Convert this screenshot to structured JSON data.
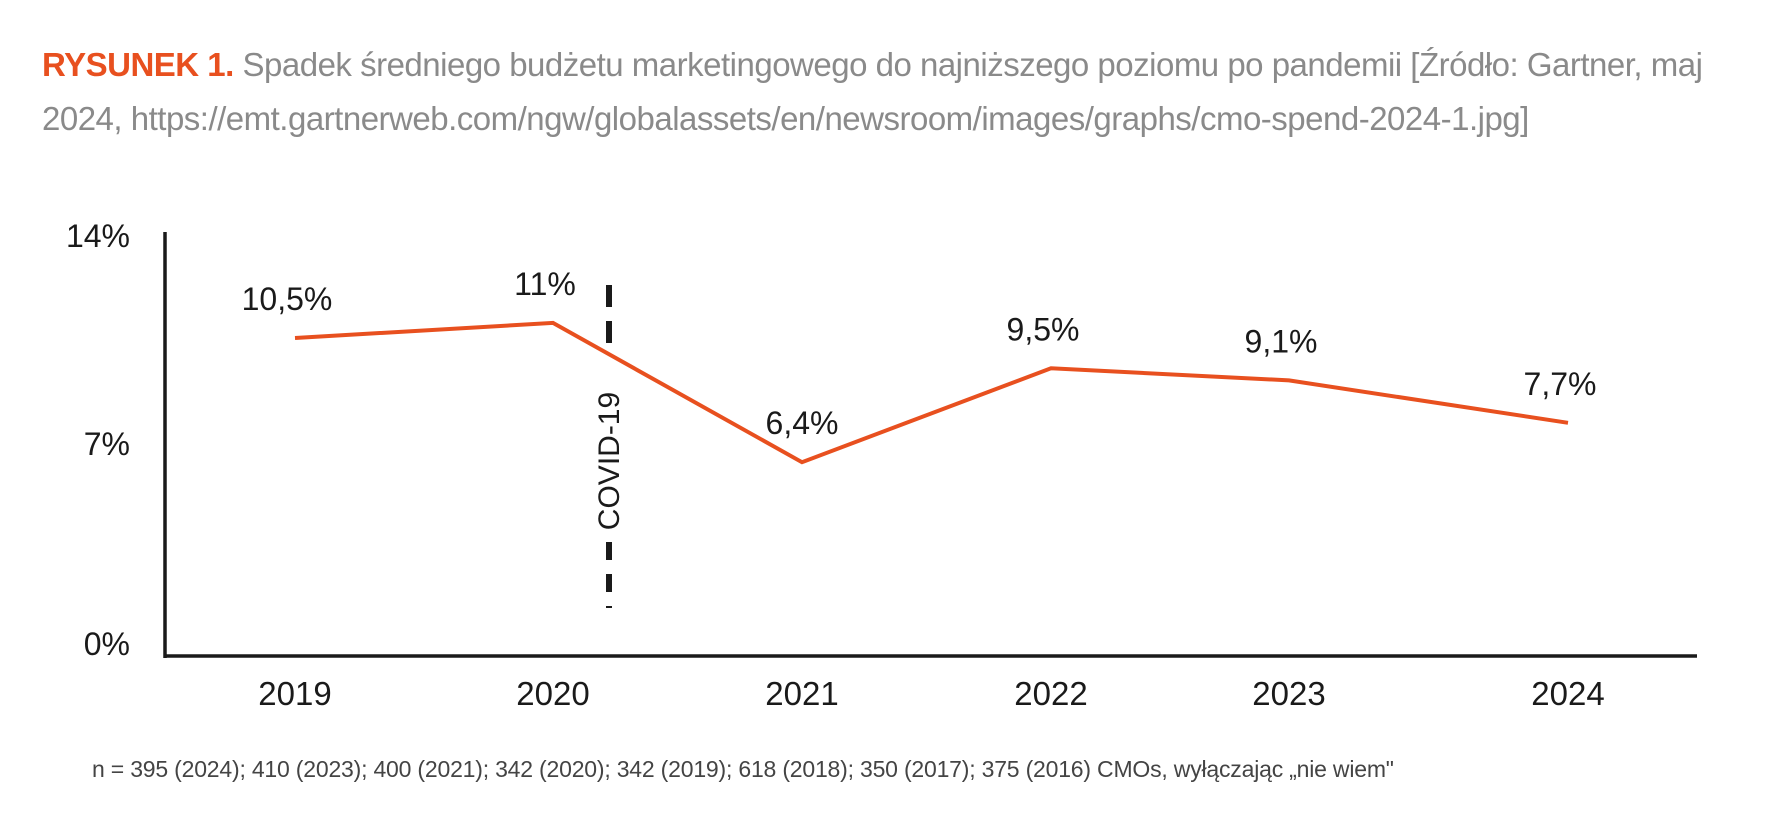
{
  "caption": {
    "label": "RYSUNEK 1.",
    "text": "Spadek średniego budżetu marketingowego do najniższego poziomu po pandemii [Źródło: Gartner, maj 2024, https://emt.gartnerweb.com/ngw/globalassets/en/newsroom/images/graphs/cmo-spend-2024-1.jpg]"
  },
  "footnote": "n = 395 (2024); 410 (2023); 400 (2021); 342 (2020); 342 (2019); 618 (2018); 350 (2017); 375 (2016) CMOs, wyłączając „nie wiem\"",
  "colors": {
    "accent": "#e8501f",
    "axis": "#1a1a1a",
    "caption_text": "#8a8a8a",
    "footnote_text": "#444444"
  },
  "chart_data": {
    "type": "line",
    "categories": [
      "2019",
      "2020",
      "2021",
      "2022",
      "2023",
      "2024"
    ],
    "values": [
      10.5,
      11,
      6.4,
      9.5,
      9.1,
      7.7
    ],
    "data_labels": [
      "10,5%",
      "11%",
      "6,4%",
      "9,5%",
      "9,1%",
      "7,7%"
    ],
    "ylim": [
      0,
      14
    ],
    "y_ticks": [
      0,
      7,
      14
    ],
    "y_tick_labels": [
      "0%",
      "7%",
      "14%"
    ],
    "grid": false,
    "legend": "none",
    "annotation": {
      "text": "COVID-19",
      "position_between": [
        "2020",
        "2021"
      ],
      "style": "dashed vertical line"
    },
    "series_color": "#e8501f"
  }
}
